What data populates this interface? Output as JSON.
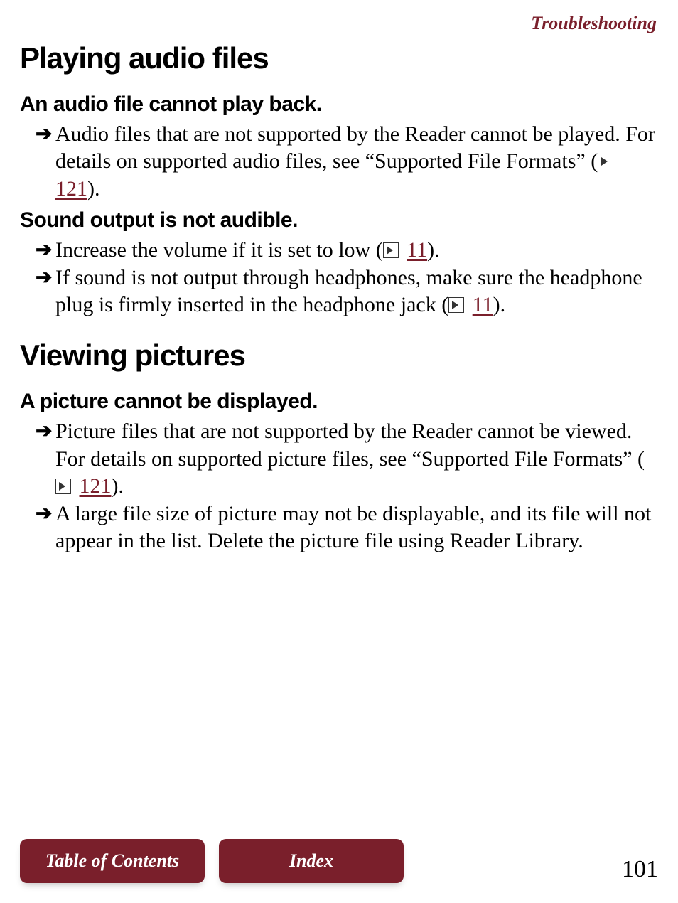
{
  "header": {
    "section_label": "Troubleshooting"
  },
  "colors": {
    "accent": "#7a1f2b",
    "text": "#000000",
    "bg": "#ffffff"
  },
  "sections": {
    "audio": {
      "title": "Playing audio files",
      "q1": {
        "heading": "An audio file cannot play back.",
        "a1_pre": "Audio files that are not supported by the Reader cannot be played. For details on supported audio files, see “Supported File Formats” (",
        "a1_ref": "121",
        "a1_post": ")."
      },
      "q2": {
        "heading": "Sound output is not audible.",
        "a1_pre": "Increase the volume if it is set to low (",
        "a1_ref": "11",
        "a1_post": ").",
        "a2_pre": "If sound is not output through headphones, make sure the headphone plug is firmly inserted in the headphone jack (",
        "a2_ref": "11",
        "a2_post": ")."
      }
    },
    "pictures": {
      "title": "Viewing pictures",
      "q1": {
        "heading": "A picture cannot be displayed.",
        "a1_pre": "Picture files that are not supported by the Reader cannot be viewed. For details on supported picture files, see “Supported File Formats” (",
        "a1_ref": "121",
        "a1_post": ").",
        "a2": "A large file size of picture may not be displayable, and its file will not appear in the list. Delete the picture file using Reader Library."
      }
    }
  },
  "footer": {
    "toc_label": "Table of Contents",
    "index_label": "Index",
    "page_number": "101"
  }
}
